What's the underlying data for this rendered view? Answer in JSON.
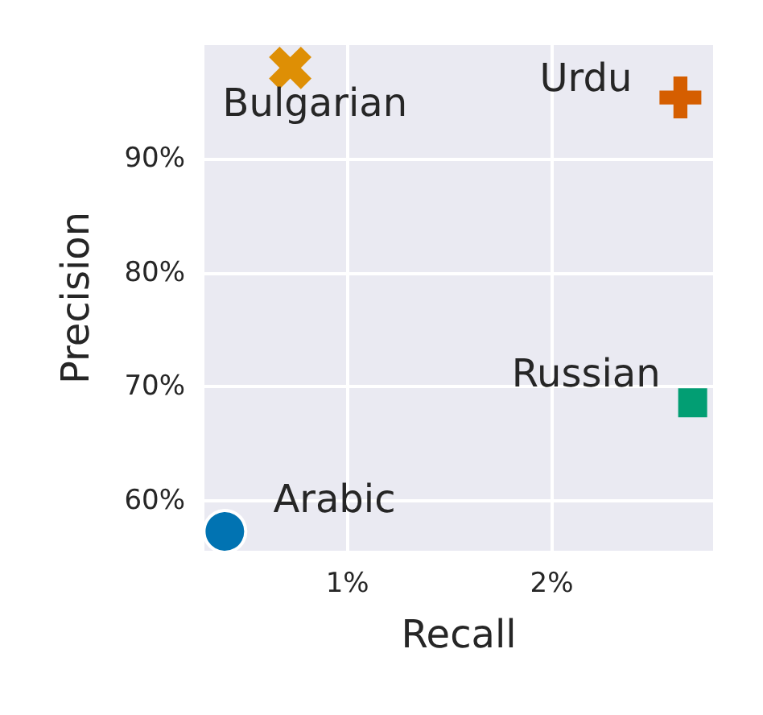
{
  "chart_data": {
    "type": "scatter",
    "xlabel": "Recall",
    "ylabel": "Precision",
    "xlim": [
      0.3,
      2.79
    ],
    "ylim": [
      55.6,
      100
    ],
    "xticks": [
      {
        "value": 1,
        "label": "1%"
      },
      {
        "value": 2,
        "label": "2%"
      }
    ],
    "yticks": [
      {
        "value": 60,
        "label": "60%"
      },
      {
        "value": 70,
        "label": "70%"
      },
      {
        "value": 80,
        "label": "80%"
      },
      {
        "value": 90,
        "label": "90%"
      }
    ],
    "grid": true,
    "legend": false,
    "series": [
      {
        "name": "Arabic",
        "color": "#0173b2",
        "marker": "circle",
        "x": [
          0.4
        ],
        "values": [
          57.3
        ]
      },
      {
        "name": "Bulgarian",
        "color": "#de8f05",
        "marker": "x",
        "x": [
          0.72
        ],
        "values": [
          98.0
        ]
      },
      {
        "name": "Urdu",
        "color": "#d55e00",
        "marker": "cross",
        "x": [
          2.63
        ],
        "values": [
          95.4
        ]
      },
      {
        "name": "Russian",
        "color": "#029e73",
        "marker": "square",
        "x": [
          2.69
        ],
        "values": [
          68.6
        ]
      }
    ]
  }
}
